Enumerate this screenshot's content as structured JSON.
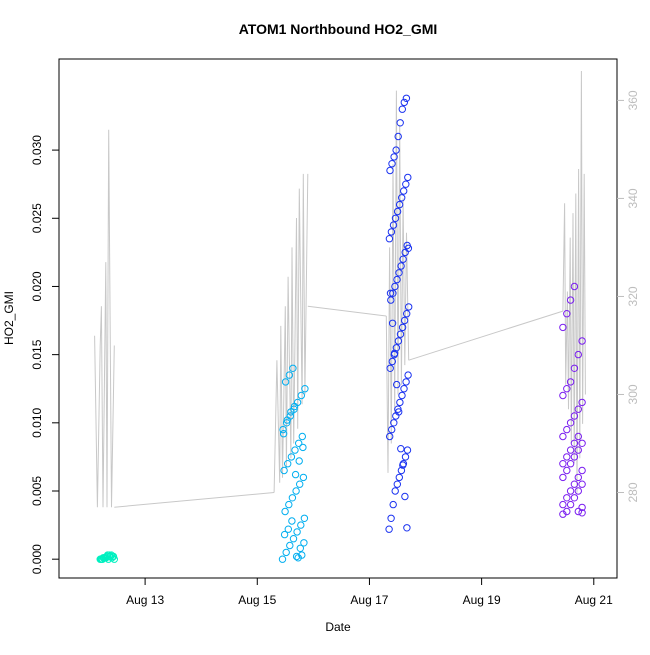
{
  "chart_data": {
    "type": "scatter",
    "title": "ATOM1 Northbound HO2_GMI",
    "xlabel": "Date",
    "ylabel": "HO2_GMI",
    "x_tick_labels": [
      "Aug 13",
      "Aug 15",
      "Aug 17",
      "Aug 19",
      "Aug 21"
    ],
    "x_tick_days": [
      13,
      15,
      17,
      19,
      21
    ],
    "xlim_days": [
      11.75,
      21.2
    ],
    "ylim": [
      -0.0005,
      0.0358
    ],
    "y_ticks": [
      0.0,
      0.005,
      0.01,
      0.015,
      0.02,
      0.025,
      0.03
    ],
    "y_tick_labels": [
      "0.000",
      "0.005",
      "0.010",
      "0.015",
      "0.020",
      "0.025",
      "0.030"
    ],
    "y2_ticks": [
      280,
      300,
      320,
      340,
      360
    ],
    "y2_tick_labels": [
      "280",
      "300",
      "320",
      "340",
      "360"
    ],
    "y2lim": [
      265,
      366
    ],
    "grid": false,
    "colors": {
      "axis": "#000000",
      "secondary_axis": "#bdbdbd",
      "secondary_line": "#c8c8c8",
      "cluster_colors": [
        "#00f0c0",
        "#00aef0",
        "#1a32f0",
        "#7a1ef0"
      ]
    },
    "clusters": [
      {
        "x_range": [
          12.2,
          12.45
        ],
        "y_points": [
          0.0,
          0.0001,
          0.0002,
          0.0,
          0.0001,
          0.0003,
          0.0,
          0.0002,
          0.0001,
          0.0,
          0.0003,
          0.0002,
          0.0001,
          0.0,
          0.0002,
          0.0001,
          0.0003,
          0.0,
          0.0001,
          0.0002
        ]
      },
      {
        "x_range": [
          15.45,
          15.85
        ],
        "y_points": [
          0.0,
          0.0005,
          0.001,
          0.0015,
          0.002,
          0.0025,
          0.003,
          0.0035,
          0.004,
          0.0045,
          0.005,
          0.0055,
          0.006,
          0.0065,
          0.007,
          0.0075,
          0.008,
          0.0085,
          0.009,
          0.0095,
          0.01,
          0.0105,
          0.011,
          0.0115,
          0.012,
          0.0125,
          0.013,
          0.0135,
          0.014,
          0.0002,
          0.0008,
          0.0012,
          0.0018,
          0.0022,
          0.0028,
          0.0062,
          0.0072,
          0.0082,
          0.0092,
          0.0102,
          0.0108,
          0.0112,
          0.0001,
          0.0003
        ]
      },
      {
        "x_range": [
          17.35,
          17.7
        ],
        "y_points": [
          0.0022,
          0.003,
          0.004,
          0.005,
          0.0055,
          0.006,
          0.0065,
          0.007,
          0.0075,
          0.008,
          0.009,
          0.0095,
          0.01,
          0.0105,
          0.011,
          0.0115,
          0.012,
          0.0125,
          0.013,
          0.0135,
          0.014,
          0.0145,
          0.015,
          0.0155,
          0.016,
          0.0165,
          0.017,
          0.0175,
          0.018,
          0.0185,
          0.019,
          0.0195,
          0.02,
          0.0205,
          0.021,
          0.0215,
          0.022,
          0.0225,
          0.023,
          0.0235,
          0.024,
          0.0245,
          0.025,
          0.0255,
          0.026,
          0.0265,
          0.027,
          0.0275,
          0.028,
          0.0285,
          0.029,
          0.0295,
          0.03,
          0.031,
          0.032,
          0.033,
          0.0335,
          0.0338,
          0.0228,
          0.0195,
          0.0173,
          0.0151,
          0.0128,
          0.0108,
          0.0081,
          0.0069,
          0.0046,
          0.0023
        ]
      },
      {
        "x_range": [
          20.45,
          20.85
        ],
        "y_points": [
          0.0033,
          0.0035,
          0.004,
          0.0045,
          0.005,
          0.0055,
          0.006,
          0.0065,
          0.007,
          0.0075,
          0.008,
          0.0085,
          0.009,
          0.0095,
          0.01,
          0.0105,
          0.011,
          0.0115,
          0.012,
          0.0125,
          0.013,
          0.014,
          0.015,
          0.016,
          0.017,
          0.018,
          0.019,
          0.02,
          0.0035,
          0.0038,
          0.004,
          0.0045,
          0.005,
          0.0055,
          0.006,
          0.0065,
          0.007,
          0.0075,
          0.008,
          0.0085,
          0.009,
          0.0034
        ]
      }
    ],
    "secondary_series": {
      "axis": "right",
      "segments": [
        {
          "x": [
            12.1,
            12.15,
            12.2,
            12.22,
            12.25,
            12.3,
            12.32,
            12.35,
            12.4,
            12.45
          ],
          "y": [
            312,
            277,
            310,
            318,
            277,
            327,
            277,
            354,
            277,
            310
          ]
        },
        {
          "x": [
            12.45,
            15.3
          ],
          "y": [
            277,
            280
          ]
        },
        {
          "x": [
            15.3,
            15.35,
            15.4,
            15.42,
            15.45,
            15.5,
            15.52,
            15.55,
            15.6,
            15.62,
            15.65,
            15.7,
            15.72,
            15.75,
            15.8,
            15.82,
            15.85,
            15.9
          ],
          "y": [
            280,
            307,
            282,
            314,
            283,
            318,
            285,
            324,
            287,
            330,
            290,
            336,
            293,
            342,
            298,
            345,
            300,
            345
          ]
        },
        {
          "x": [
            15.9,
            17.3
          ],
          "y": [
            318,
            316
          ]
        },
        {
          "x": [
            17.3,
            17.33,
            17.36,
            17.39,
            17.42,
            17.45,
            17.48,
            17.51,
            17.54,
            17.57,
            17.6,
            17.63,
            17.66,
            17.7
          ],
          "y": [
            316,
            284,
            330,
            290,
            347,
            296,
            362,
            300,
            355,
            302,
            340,
            306,
            333,
            307
          ]
        },
        {
          "x": [
            17.7,
            20.45
          ],
          "y": [
            307,
            317
          ]
        },
        {
          "x": [
            20.45,
            20.48,
            20.5,
            20.53,
            20.55,
            20.58,
            20.6,
            20.63,
            20.65,
            20.68,
            20.7,
            20.73,
            20.75,
            20.78,
            20.8,
            20.83,
            20.85
          ],
          "y": [
            317,
            339,
            302,
            321,
            297,
            332,
            290,
            337,
            286,
            341,
            280,
            346,
            287,
            366,
            294,
            345,
            300
          ]
        }
      ]
    }
  }
}
